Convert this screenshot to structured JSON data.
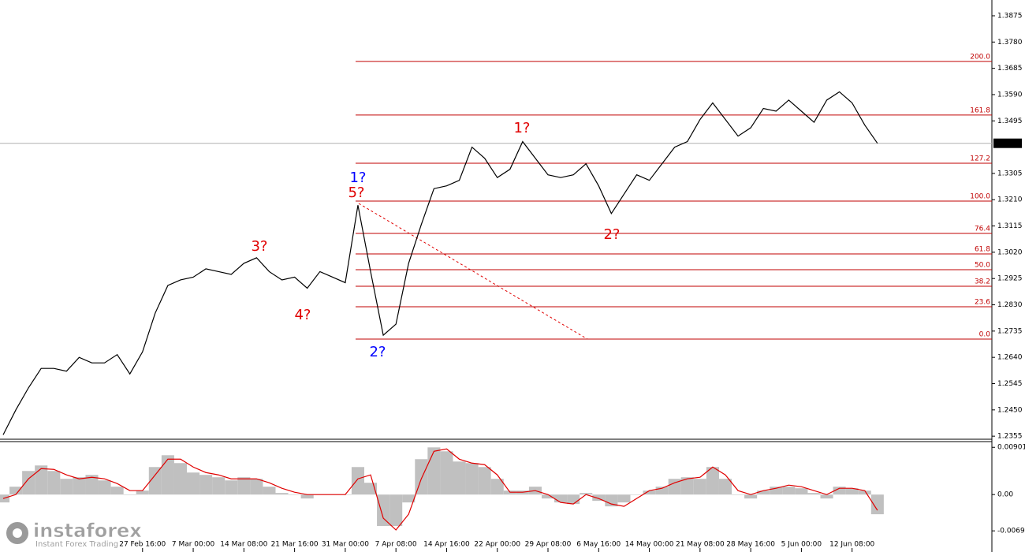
{
  "chart_data": [
    {
      "type": "line",
      "color": "#000000",
      "categories": [
        null,
        null,
        null,
        null,
        null,
        null,
        null,
        null,
        null,
        null,
        null,
        "27 Feb 16:00",
        null,
        null,
        null,
        "7 Mar 00:00",
        null,
        null,
        null,
        "14 Mar 08:00",
        null,
        null,
        null,
        "21 Mar 16:00",
        null,
        null,
        null,
        "31 Mar 00:00",
        null,
        null,
        null,
        "7 Apr 08:00",
        null,
        null,
        null,
        "14 Apr 16:00",
        null,
        null,
        null,
        "22 Apr 00:00",
        null,
        null,
        null,
        "29 Apr 08:00",
        null,
        null,
        null,
        "6 May 16:00",
        null,
        null,
        null,
        "14 May 00:00",
        null,
        null,
        null,
        "21 May 08:00",
        null,
        null,
        null,
        "28 May 16:00",
        null,
        null,
        null,
        "5 Jun 00:00",
        null,
        null,
        null,
        "12 Jun 08:00",
        null,
        null
      ],
      "values": [
        1.236,
        1.245,
        1.253,
        1.26,
        1.26,
        1.259,
        1.264,
        1.262,
        1.262,
        1.265,
        1.258,
        1.266,
        1.28,
        1.29,
        1.292,
        1.293,
        1.296,
        1.295,
        1.294,
        1.298,
        1.3,
        1.295,
        1.292,
        1.293,
        1.289,
        1.295,
        1.293,
        1.291,
        1.319,
        1.295,
        1.272,
        1.276,
        1.298,
        1.312,
        1.325,
        1.326,
        1.328,
        1.34,
        1.336,
        1.329,
        1.332,
        1.342,
        1.336,
        1.33,
        1.329,
        1.33,
        1.334,
        1.326,
        1.316,
        1.323,
        1.33,
        1.328,
        1.334,
        1.34,
        1.342,
        1.35,
        1.356,
        1.35,
        1.344,
        1.347,
        1.354,
        1.353,
        1.357,
        1.353,
        1.349,
        1.357,
        1.36,
        1.356,
        1.348,
        1.3414
      ],
      "ylim": [
        1.2344,
        1.3932
      ],
      "yticks": [
        1.3875,
        {
          "value": 1.378,
          "label": "1.3780"
        },
        1.3685,
        {
          "value": 1.359,
          "label": "1.3590"
        },
        1.3495,
        1.3305,
        {
          "value": 1.321,
          "label": "1.3210"
        },
        1.3115,
        {
          "value": 1.302,
          "label": "1.3020"
        },
        1.2925,
        {
          "value": 1.283,
          "label": "1.2830"
        },
        1.2735,
        {
          "value": 1.264,
          "label": "1.2640"
        },
        1.2545,
        {
          "value": 1.245,
          "label": "1.2450"
        },
        1.2355
      ],
      "current": 1.3414,
      "fib_levels": [
        {
          "label": "200.0",
          "price": 1.371
        },
        {
          "label": "161.8",
          "price": 1.3516
        },
        {
          "label": "127.2",
          "price": 1.3342
        },
        {
          "label": "100.0",
          "price": 1.3205
        },
        {
          "label": "76.4",
          "price": 1.3088
        },
        {
          "label": "61.8",
          "price": 1.3014
        },
        {
          "label": "50.0",
          "price": 1.2957
        },
        {
          "label": "38.2",
          "price": 1.2897
        },
        {
          "label": "23.6",
          "price": 1.2823
        },
        {
          "label": "0.0",
          "price": 1.2706
        }
      ],
      "fib_color": "#c00000",
      "annotations": [
        {
          "text": "1?",
          "color": "#0000ff"
        },
        {
          "text": "5?",
          "color": "#e00000"
        },
        {
          "text": "2?",
          "color": "#0000ff"
        },
        {
          "text": "3?",
          "color": "#e00000"
        },
        {
          "text": "4?",
          "color": "#e00000"
        },
        {
          "text": "1?",
          "color": "#e00000"
        },
        {
          "text": "2?",
          "color": "#e00000"
        }
      ]
    },
    {
      "type": "macd",
      "histogram_color": "#c0c0c0",
      "signal_color": "#e00000",
      "histogram": [
        -0.0015,
        0.0015,
        0.0045,
        0.00555,
        0.0045,
        0.003,
        0.0033,
        0.00375,
        0.0027,
        0.0015,
        0,
        0.00075,
        0.00525,
        0.0075,
        0.006,
        0.0042,
        0.00375,
        0.0033,
        0.0027,
        0.0033,
        0.003,
        0.0015,
        0.0003,
        0,
        -0.00075,
        0,
        0,
        0,
        0.00525,
        0.00225,
        -0.006,
        -0.006,
        -0.0015,
        0.00675,
        0.009,
        0.00825,
        0.0063,
        0.006,
        0.00525,
        0.003,
        0.00075,
        0.00075,
        0.0015,
        -0.00075,
        -0.0015,
        -0.0018,
        0.0003,
        -0.0012,
        -0.00225,
        -0.0015,
        0,
        0.00075,
        0.0015,
        0.003,
        0.0033,
        0.003,
        0.00525,
        0.003,
        0,
        -0.00075,
        0.00075,
        0.0015,
        0.0015,
        0.0012,
        0.0003,
        -0.00075,
        0.0015,
        0.0012,
        0.00075,
        -0.00375
      ],
      "signal": [
        -0.00075,
        0,
        0.003,
        0.00495,
        0.0048,
        0.00375,
        0.003,
        0.0033,
        0.003,
        0.0021,
        0.00075,
        0.00075,
        0.00375,
        0.00675,
        0.00675,
        0.00525,
        0.0042,
        0.00375,
        0.003,
        0.003,
        0.003,
        0.00225,
        0.0012,
        0.00045,
        0,
        0,
        0,
        0,
        0.003,
        0.00375,
        -0.0045,
        -0.00675,
        -0.00375,
        0.003,
        0.00825,
        0.0087,
        0.00675,
        0.006,
        0.0057,
        0.00375,
        0.00045,
        0.00045,
        0.00075,
        0,
        -0.0015,
        -0.0018,
        0,
        -0.00075,
        -0.0018,
        -0.00225,
        -0.00075,
        0.00075,
        0.0012,
        0.00225,
        0.003,
        0.0033,
        0.00525,
        0.00375,
        0.00075,
        0,
        0.00075,
        0.0012,
        0.0018,
        0.0015,
        0.00075,
        0,
        0.0012,
        0.0012,
        0.00075,
        -0.003
      ],
      "ylim": [
        -0.0102,
        0.0101
      ],
      "yticks": [
        0.00901,
        {
          "value": 0,
          "label": "0.00"
        },
        -0.00692
      ]
    }
  ],
  "logo": {
    "name": "instaforex",
    "tagline": "Instant Forex Trading"
  }
}
